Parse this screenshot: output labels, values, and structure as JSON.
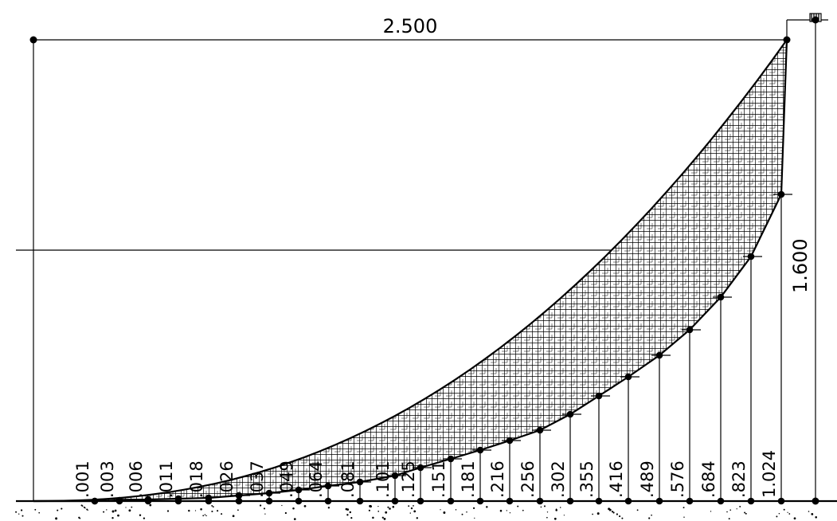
{
  "drawing": {
    "span_label": "2.500",
    "height_label": "1.600"
  },
  "ordinates": [
    ".001",
    ".003",
    ".006",
    ".011",
    ".018",
    ".026",
    ".037",
    ".049",
    ".064",
    ".081",
    ".101",
    ".125",
    ".151",
    ".181",
    ".216",
    ".256",
    ".302",
    ".355",
    ".416",
    ".489",
    ".576",
    ".684",
    ".823",
    "1.024"
  ]
}
